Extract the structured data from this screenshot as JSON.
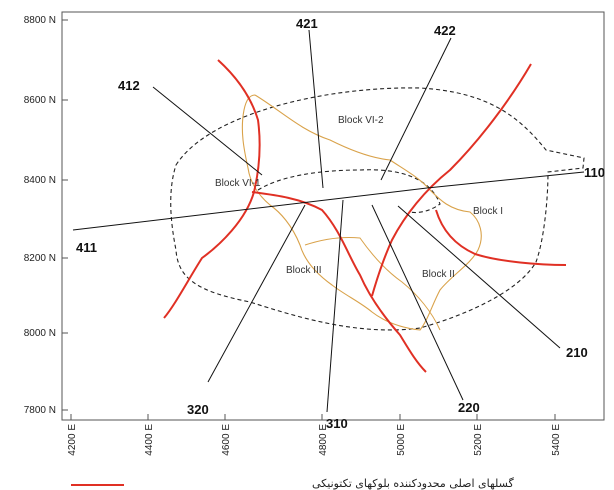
{
  "y_ticks": [
    "8800 N",
    "8600 N",
    "8400 N",
    "8200 N",
    "8000 N",
    "7800 N"
  ],
  "x_ticks": [
    "4200 E",
    "4400 E",
    "4600 E",
    "4800 E",
    "5000 E",
    "5200 E",
    "5400 E"
  ],
  "blocks": [
    "Block VI-2",
    "Block VI-1",
    "Block I",
    "Block III",
    "Block II"
  ],
  "sections": [
    "421",
    "422",
    "412",
    "110",
    "411",
    "210",
    "320",
    "220",
    "310"
  ],
  "legend": {
    "fault_label": "گسلهای اصلی محدودکننده بلوکهای تکتونیکی"
  },
  "colors": {
    "fault": "#e03024",
    "contour": "#d9a24a",
    "section_line": "#111111",
    "boundary": "#222222",
    "frame": "#555555"
  }
}
